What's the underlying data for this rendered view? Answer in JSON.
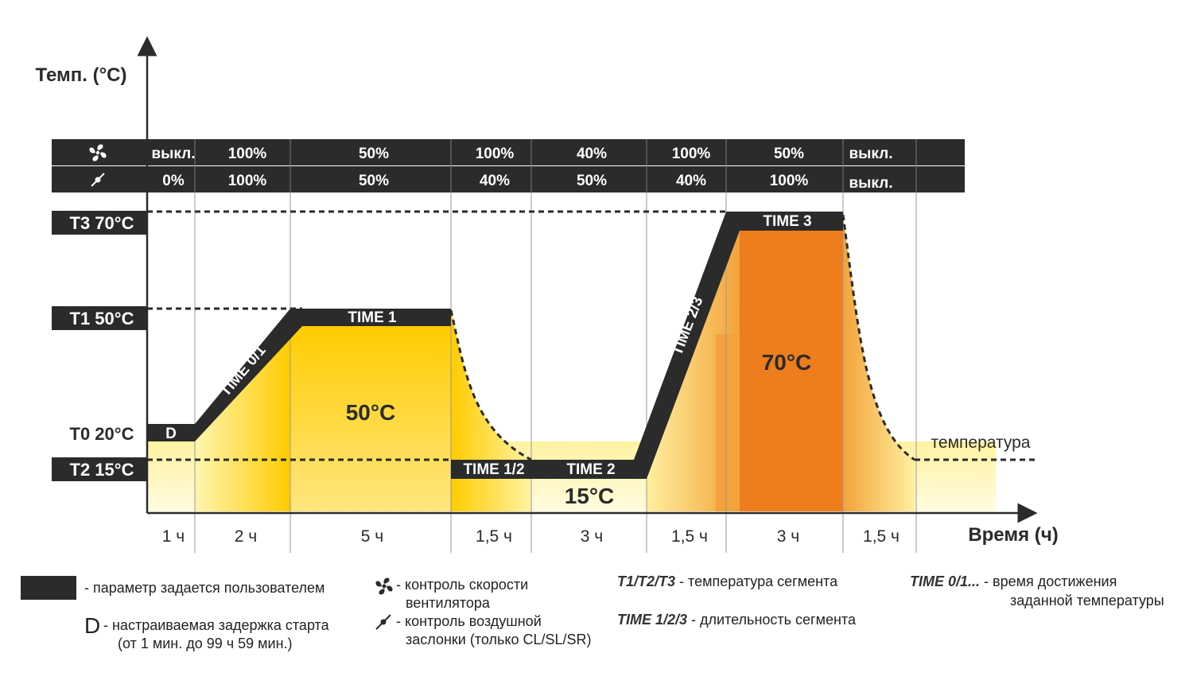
{
  "axes": {
    "y_label": "Темп. (°C)",
    "x_label": "Время (ч)"
  },
  "levels": [
    {
      "key": "T3",
      "label": "T3 70°C"
    },
    {
      "key": "T1",
      "label": "T1 50°C"
    },
    {
      "key": "T0",
      "label": "T0 20°C"
    },
    {
      "key": "T2",
      "label": "T2 15°C"
    }
  ],
  "rows": {
    "fan": [
      "выкл.",
      "100%",
      "50%",
      "100%",
      "40%",
      "100%",
      "50%",
      "выкл."
    ],
    "damper": [
      "0%",
      "100%",
      "50%",
      "40%",
      "50%",
      "40%",
      "100%",
      "выкл."
    ]
  },
  "durations": [
    "1 ч",
    "2 ч",
    "5 ч",
    "1,5 ч",
    "3 ч",
    "1,5 ч",
    "3 ч",
    "1,5 ч"
  ],
  "segments": {
    "d": "D",
    "time01": "TIME 0/1",
    "time1": "TIME 1",
    "time12": "TIME 1/2",
    "time2": "TIME 2",
    "time23": "TIME 2/3",
    "time3": "TIME 3"
  },
  "zones": {
    "z50": "50°C",
    "z15": "15°C",
    "z70": "70°C"
  },
  "curve_label": "температура",
  "legend": {
    "user_param": "- параметр задается пользователем",
    "d_letter": "D",
    "d_line1": "- настраиваемая задержка старта",
    "d_line2": "(от 1 мин. до 99 ч 59 мин.)",
    "fan_line1": "- контроль скорости",
    "fan_line2": "вентилятора",
    "damper_line1": "- контроль воздушной",
    "damper_line2": "заслонки (только CL/SL/SR)",
    "t_key": "T1/T2/T3",
    "t_text": "- температура сегмента",
    "time_key": "TIME 1/2/3",
    "time_text": "- длительность сегмента",
    "time01_key": "TIME 0/1...",
    "time01_line1": "- время достижения",
    "time01_line2": "заданной температуры"
  },
  "colors": {
    "dark": "#2b2b2b",
    "yellow": "#ffcc00",
    "orange": "#ee7d1d",
    "pale": "#fff3a0"
  }
}
